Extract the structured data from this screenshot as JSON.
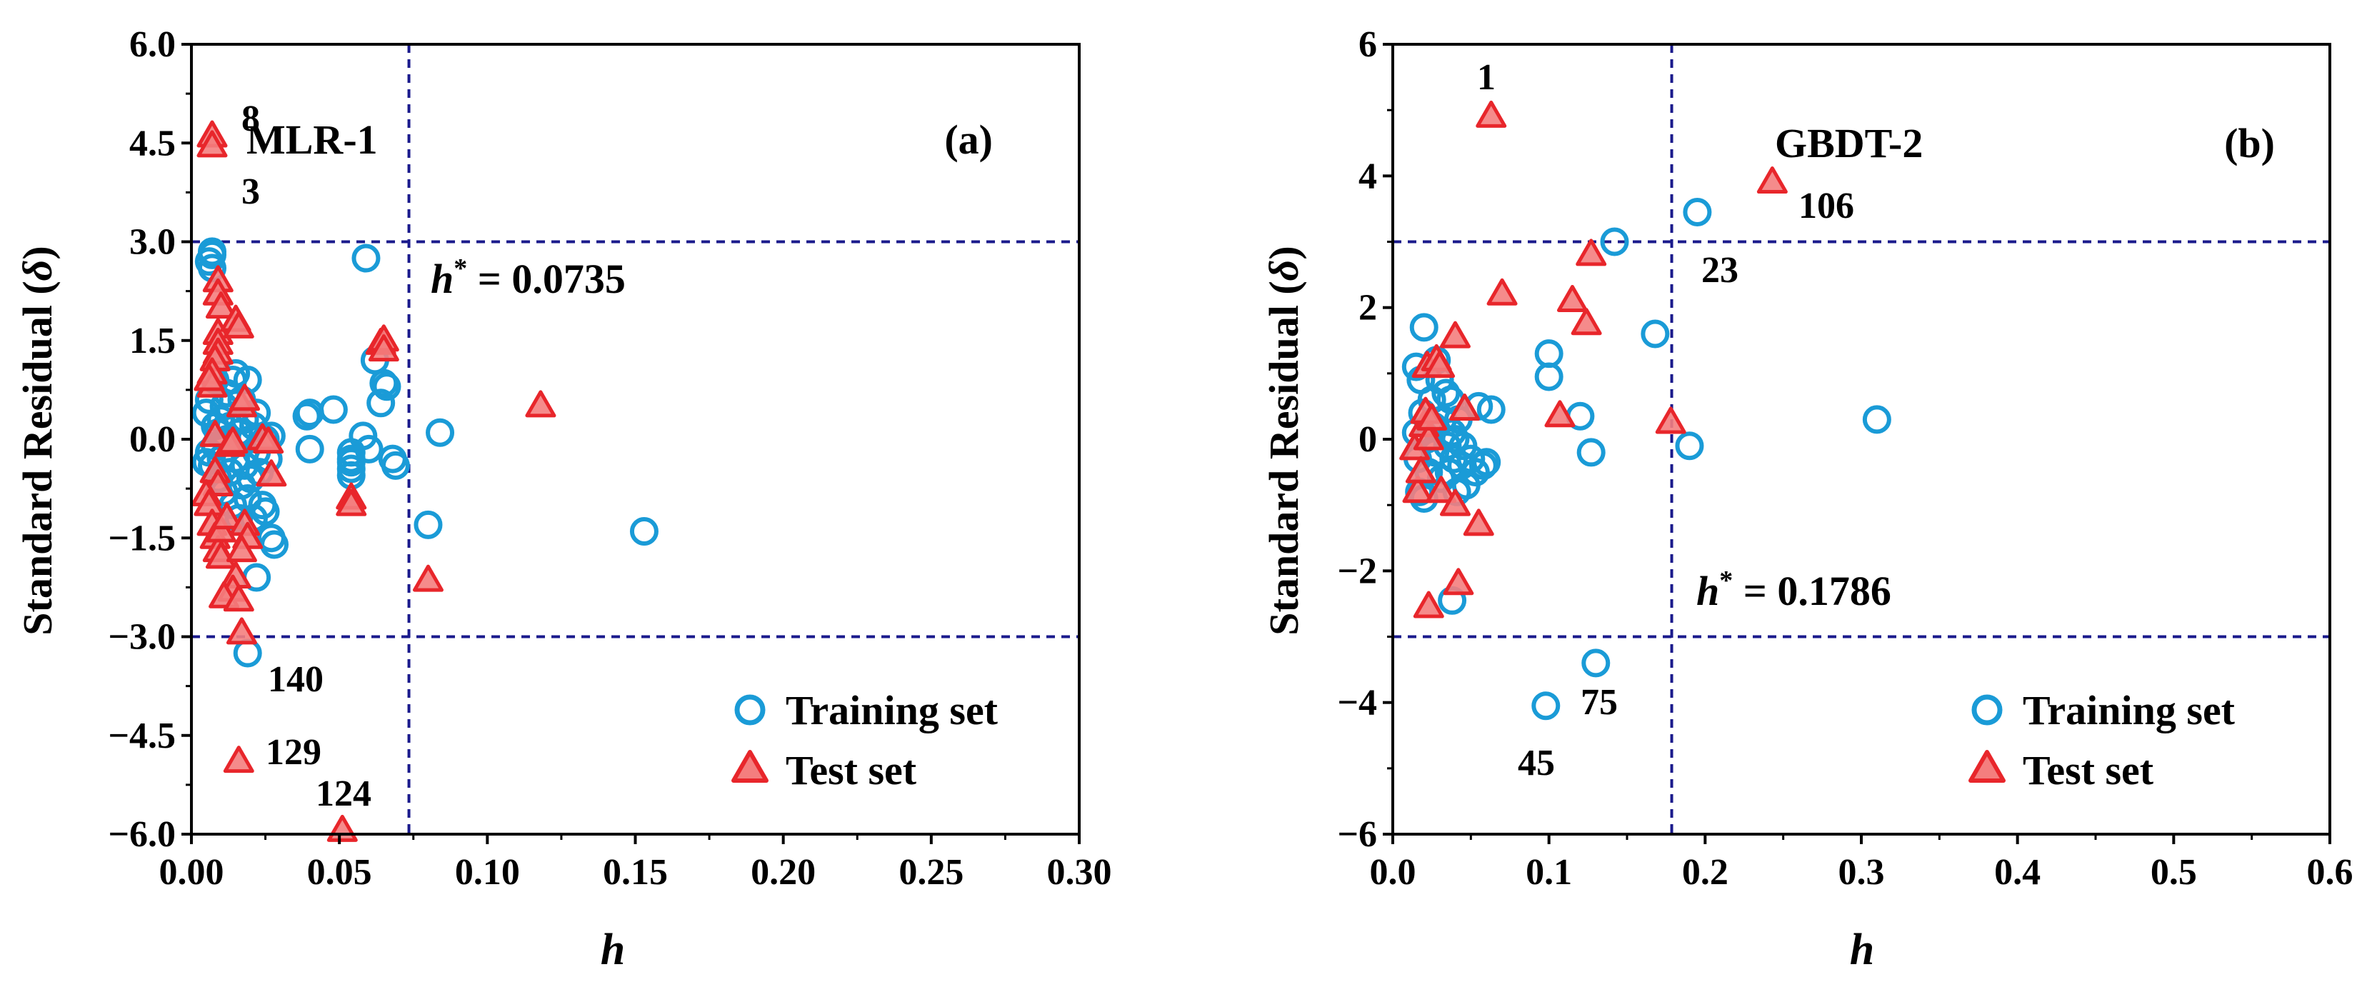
{
  "chart_data": [
    {
      "type": "scatter",
      "panel_label": "(a)",
      "model_label": "MLR-1",
      "xlabel": "h",
      "ylabel_main": "Standard Residual (",
      "ylabel_symbol": "δ",
      "ylabel_end": ")",
      "xlim": [
        0.0,
        0.3
      ],
      "ylim": [
        -6.0,
        6.0
      ],
      "x_ticks": [
        0.0,
        0.05,
        0.1,
        0.15,
        0.2,
        0.25,
        0.3
      ],
      "x_tick_labels": [
        "0.00",
        "0.05",
        "0.10",
        "0.15",
        "0.20",
        "0.25",
        "0.30"
      ],
      "y_ticks": [
        -6.0,
        -4.5,
        -3.0,
        -1.5,
        0.0,
        1.5,
        3.0,
        4.5,
        6.0
      ],
      "y_tick_labels": [
        "−6.0",
        "−4.5",
        "−3.0",
        "−1.5",
        "0.0",
        "1.5",
        "3.0",
        "4.5",
        "6.0"
      ],
      "h_star": 0.0735,
      "h_star_label_sym": "h",
      "h_star_label_sup": "*",
      "h_star_label_val": " = 0.0735",
      "residual_limits": [
        -3.0,
        3.0
      ],
      "legend_position": "bottom-right",
      "series": [
        {
          "name": "Training set",
          "marker": "circle",
          "points": [
            [
              0.005,
              -0.35
            ],
            [
              0.005,
              0.4
            ],
            [
              0.006,
              0.6
            ],
            [
              0.006,
              -0.2
            ],
            [
              0.006,
              2.7
            ],
            [
              0.007,
              2.8
            ],
            [
              0.007,
              2.85
            ],
            [
              0.007,
              2.6
            ],
            [
              0.007,
              -0.4
            ],
            [
              0.008,
              0.2
            ],
            [
              0.008,
              0.9
            ],
            [
              0.008,
              -0.1
            ],
            [
              0.009,
              0.1
            ],
            [
              0.009,
              -0.6
            ],
            [
              0.01,
              0.3
            ],
            [
              0.01,
              -0.3
            ],
            [
              0.011,
              0.5
            ],
            [
              0.011,
              -0.8
            ],
            [
              0.012,
              0.0
            ],
            [
              0.012,
              0.7
            ],
            [
              0.013,
              -0.5
            ],
            [
              0.013,
              0.2
            ],
            [
              0.014,
              -1.0
            ],
            [
              0.014,
              0.9
            ],
            [
              0.015,
              1.0
            ],
            [
              0.015,
              -0.3
            ],
            [
              0.016,
              0.1
            ],
            [
              0.016,
              -1.2
            ],
            [
              0.017,
              0.6
            ],
            [
              0.017,
              -0.7
            ],
            [
              0.018,
              0.3
            ],
            [
              0.018,
              -0.4
            ],
            [
              0.019,
              0.9
            ],
            [
              0.019,
              -0.9
            ],
            [
              0.02,
              0.0
            ],
            [
              0.02,
              -0.6
            ],
            [
              0.021,
              0.2
            ],
            [
              0.021,
              -1.2
            ],
            [
              0.022,
              -0.2
            ],
            [
              0.022,
              0.4
            ],
            [
              0.023,
              -0.5
            ],
            [
              0.024,
              -1.0
            ],
            [
              0.025,
              -1.1
            ],
            [
              0.025,
              0.0
            ],
            [
              0.026,
              -0.3
            ],
            [
              0.027,
              0.05
            ],
            [
              0.027,
              -1.5
            ],
            [
              0.028,
              -1.6
            ],
            [
              0.022,
              -2.1
            ],
            [
              0.019,
              -3.25
            ],
            [
              0.039,
              0.35
            ],
            [
              0.04,
              0.4
            ],
            [
              0.04,
              -0.15
            ],
            [
              0.048,
              0.45
            ],
            [
              0.054,
              -0.2
            ],
            [
              0.054,
              -0.3
            ],
            [
              0.054,
              -0.35
            ],
            [
              0.054,
              -0.45
            ],
            [
              0.054,
              -0.55
            ],
            [
              0.058,
              0.05
            ],
            [
              0.059,
              2.75
            ],
            [
              0.06,
              -0.15
            ],
            [
              0.062,
              1.2
            ],
            [
              0.064,
              0.55
            ],
            [
              0.065,
              0.85
            ],
            [
              0.066,
              0.8
            ],
            [
              0.068,
              -0.3
            ],
            [
              0.069,
              -0.4
            ],
            [
              0.08,
              -1.3
            ],
            [
              0.084,
              0.1
            ],
            [
              0.153,
              -1.4
            ]
          ]
        },
        {
          "name": "Test set",
          "marker": "triangle",
          "points": [
            [
              0.007,
              4.6
            ],
            [
              0.007,
              4.45
            ],
            [
              0.009,
              2.4
            ],
            [
              0.009,
              2.2
            ],
            [
              0.01,
              2.0
            ],
            [
              0.009,
              1.6
            ],
            [
              0.009,
              1.45
            ],
            [
              0.009,
              1.3
            ],
            [
              0.008,
              1.2
            ],
            [
              0.007,
              1.0
            ],
            [
              0.007,
              0.8
            ],
            [
              0.006,
              0.9
            ],
            [
              0.008,
              0.05
            ],
            [
              0.008,
              -0.5
            ],
            [
              0.009,
              -0.7
            ],
            [
              0.005,
              -0.85
            ],
            [
              0.006,
              -1.0
            ],
            [
              0.007,
              -1.3
            ],
            [
              0.008,
              -1.5
            ],
            [
              0.009,
              -1.7
            ],
            [
              0.01,
              -1.8
            ],
            [
              0.01,
              -1.4
            ],
            [
              0.012,
              -1.2
            ],
            [
              0.013,
              -0.1
            ],
            [
              0.014,
              -0.05
            ],
            [
              0.015,
              1.8
            ],
            [
              0.016,
              1.7
            ],
            [
              0.017,
              0.5
            ],
            [
              0.018,
              0.6
            ],
            [
              0.018,
              -1.3
            ],
            [
              0.019,
              -1.5
            ],
            [
              0.017,
              -1.7
            ],
            [
              0.015,
              -2.1
            ],
            [
              0.014,
              -2.3
            ],
            [
              0.011,
              -2.4
            ],
            [
              0.016,
              -2.45
            ],
            [
              0.017,
              -2.95
            ],
            [
              0.024,
              0.0
            ],
            [
              0.026,
              -0.05
            ],
            [
              0.027,
              -0.55
            ],
            [
              0.054,
              -0.9
            ],
            [
              0.054,
              -1.0
            ],
            [
              0.064,
              1.45
            ],
            [
              0.065,
              1.5
            ],
            [
              0.065,
              1.35
            ],
            [
              0.08,
              -2.15
            ],
            [
              0.118,
              0.5
            ],
            [
              0.016,
              -4.9
            ],
            [
              0.051,
              -5.95
            ]
          ]
        }
      ],
      "annotations": [
        "8",
        "3",
        "140",
        "129",
        "124"
      ]
    },
    {
      "type": "scatter",
      "panel_label": "(b)",
      "model_label": "GBDT-2",
      "xlabel": "h",
      "ylabel_main": "Standard Residual (",
      "ylabel_symbol": "δ",
      "ylabel_end": ")",
      "xlim": [
        0.0,
        0.6
      ],
      "ylim": [
        -6,
        6
      ],
      "x_ticks": [
        0.0,
        0.1,
        0.2,
        0.3,
        0.4,
        0.5,
        0.6
      ],
      "x_tick_labels": [
        "0.0",
        "0.1",
        "0.2",
        "0.3",
        "0.4",
        "0.5",
        "0.6"
      ],
      "y_ticks": [
        -6,
        -4,
        -2,
        0,
        2,
        4,
        6
      ],
      "y_tick_labels": [
        "−6",
        "−4",
        "−2",
        "0",
        "2",
        "4",
        "6"
      ],
      "h_star": 0.1786,
      "h_star_label_sym": "h",
      "h_star_label_sup": "*",
      "h_star_label_val": " = 0.1786",
      "residual_limits": [
        -3.0,
        3.0
      ],
      "legend_position": "bottom-right",
      "series": [
        {
          "name": "Training set",
          "marker": "circle",
          "points": [
            [
              0.015,
              1.1
            ],
            [
              0.015,
              0.1
            ],
            [
              0.016,
              -0.3
            ],
            [
              0.017,
              -0.8
            ],
            [
              0.018,
              0.9
            ],
            [
              0.019,
              0.4
            ],
            [
              0.02,
              1.7
            ],
            [
              0.02,
              -0.9
            ],
            [
              0.022,
              0.0
            ],
            [
              0.023,
              -0.5
            ],
            [
              0.025,
              0.6
            ],
            [
              0.026,
              0.2
            ],
            [
              0.027,
              -0.2
            ],
            [
              0.028,
              1.2
            ],
            [
              0.03,
              0.9
            ],
            [
              0.031,
              -0.6
            ],
            [
              0.032,
              0.3
            ],
            [
              0.034,
              0.7
            ],
            [
              0.035,
              -0.1
            ],
            [
              0.036,
              -0.5
            ],
            [
              0.037,
              0.6
            ],
            [
              0.038,
              0.1
            ],
            [
              0.039,
              -0.3
            ],
            [
              0.04,
              0.0
            ],
            [
              0.041,
              -0.8
            ],
            [
              0.042,
              0.3
            ],
            [
              0.044,
              -0.4
            ],
            [
              0.045,
              -0.1
            ],
            [
              0.047,
              -0.7
            ],
            [
              0.05,
              -0.3
            ],
            [
              0.053,
              -0.5
            ],
            [
              0.055,
              0.5
            ],
            [
              0.058,
              -0.4
            ],
            [
              0.06,
              -0.35
            ],
            [
              0.063,
              0.45
            ],
            [
              0.038,
              -2.45
            ],
            [
              0.1,
              1.3
            ],
            [
              0.1,
              0.95
            ],
            [
              0.12,
              0.35
            ],
            [
              0.127,
              -0.2
            ],
            [
              0.142,
              3.0
            ],
            [
              0.168,
              1.6
            ],
            [
              0.19,
              -0.1
            ],
            [
              0.195,
              3.45
            ],
            [
              0.31,
              0.3
            ],
            [
              0.098,
              -4.05
            ],
            [
              0.13,
              -3.4
            ]
          ]
        },
        {
          "name": "Test set",
          "marker": "triangle",
          "points": [
            [
              0.063,
              4.9
            ],
            [
              0.014,
              -0.15
            ],
            [
              0.016,
              -0.8
            ],
            [
              0.018,
              -0.5
            ],
            [
              0.02,
              0.2
            ],
            [
              0.021,
              0.4
            ],
            [
              0.022,
              1.1
            ],
            [
              0.023,
              0.0
            ],
            [
              0.025,
              0.3
            ],
            [
              0.028,
              1.2
            ],
            [
              0.03,
              1.1
            ],
            [
              0.031,
              -0.8
            ],
            [
              0.04,
              1.55
            ],
            [
              0.04,
              -1.0
            ],
            [
              0.042,
              -2.2
            ],
            [
              0.046,
              0.45
            ],
            [
              0.055,
              -1.3
            ],
            [
              0.023,
              -2.55
            ],
            [
              0.07,
              2.2
            ],
            [
              0.107,
              0.35
            ],
            [
              0.115,
              2.1
            ],
            [
              0.124,
              1.75
            ],
            [
              0.127,
              2.8
            ],
            [
              0.178,
              0.25
            ],
            [
              0.243,
              3.9
            ]
          ]
        }
      ],
      "annotations": [
        "1",
        "106",
        "23",
        "75",
        "45"
      ]
    }
  ],
  "styles": {
    "training_color": "#1a9bd7",
    "test_edge_color": "#e8262b",
    "test_fill_color": "#f47e7e",
    "guide_color": "#1a1a8c",
    "axis_color": "#000000"
  }
}
